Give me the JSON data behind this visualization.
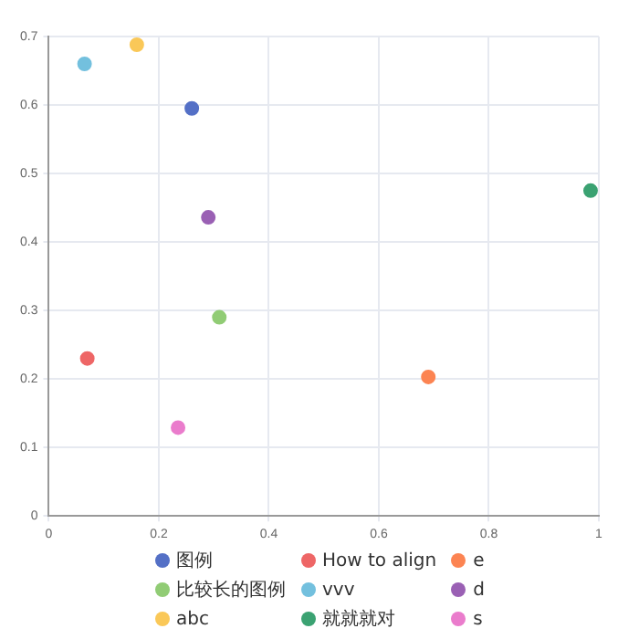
{
  "chart_data": {
    "type": "scatter",
    "xlim": [
      0,
      1
    ],
    "xticks": [
      0,
      0.2,
      0.4,
      0.6,
      0.8,
      1
    ],
    "ylim": [
      0,
      0.7
    ],
    "yticks": [
      0,
      0.1,
      0.2,
      0.3,
      0.4,
      0.5,
      0.6,
      0.7
    ],
    "grid": true,
    "legend": "bottom",
    "marker": "circle",
    "series": [
      {
        "name": "图例",
        "color": "#5470c6",
        "x": [
          0.26
        ],
        "values": [
          0.595
        ]
      },
      {
        "name": "How to align",
        "color": "#ee6666",
        "x": [
          0.07
        ],
        "values": [
          0.23
        ]
      },
      {
        "name": "e",
        "color": "#fc8452",
        "x": [
          0.69
        ],
        "values": [
          0.203
        ]
      },
      {
        "name": "比较长的图例",
        "color": "#91cc75",
        "x": [
          0.31
        ],
        "values": [
          0.29
        ]
      },
      {
        "name": "vvv",
        "color": "#73c0de",
        "x": [
          0.065
        ],
        "values": [
          0.66
        ]
      },
      {
        "name": "d",
        "color": "#9a60b4",
        "x": [
          0.29
        ],
        "values": [
          0.436
        ]
      },
      {
        "name": "abc",
        "color": "#fac858",
        "x": [
          0.16
        ],
        "values": [
          0.688
        ]
      },
      {
        "name": "就就就对",
        "color": "#3ba272",
        "x": [
          0.985
        ],
        "values": [
          0.475
        ]
      },
      {
        "name": "s",
        "color": "#ea7ccc",
        "x": [
          0.235
        ],
        "values": [
          0.129
        ]
      }
    ]
  }
}
